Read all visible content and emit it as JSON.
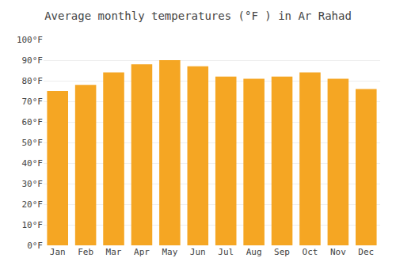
{
  "chart_data": {
    "type": "bar",
    "title": "Average monthly temperatures (°F ) in Ar Rahad",
    "categories": [
      "Jan",
      "Feb",
      "Mar",
      "Apr",
      "May",
      "Jun",
      "Jul",
      "Aug",
      "Sep",
      "Oct",
      "Nov",
      "Dec"
    ],
    "values": [
      75,
      78,
      84,
      88,
      90,
      87,
      82,
      81,
      82,
      84,
      81,
      76
    ],
    "color": "#F5A623",
    "ylim": [
      0,
      100
    ],
    "yticks": [
      {
        "value": 0,
        "label": "0°F"
      },
      {
        "value": 10,
        "label": "10°F"
      },
      {
        "value": 20,
        "label": "20°F"
      },
      {
        "value": 30,
        "label": "30°F"
      },
      {
        "value": 40,
        "label": "40°F"
      },
      {
        "value": 50,
        "label": "50°F"
      },
      {
        "value": 60,
        "label": "60°F"
      },
      {
        "value": 70,
        "label": "70°F"
      },
      {
        "value": 80,
        "label": "80°F"
      },
      {
        "value": 90,
        "label": "90°F"
      },
      {
        "value": 100,
        "label": "100°F"
      }
    ],
    "grid": true
  }
}
